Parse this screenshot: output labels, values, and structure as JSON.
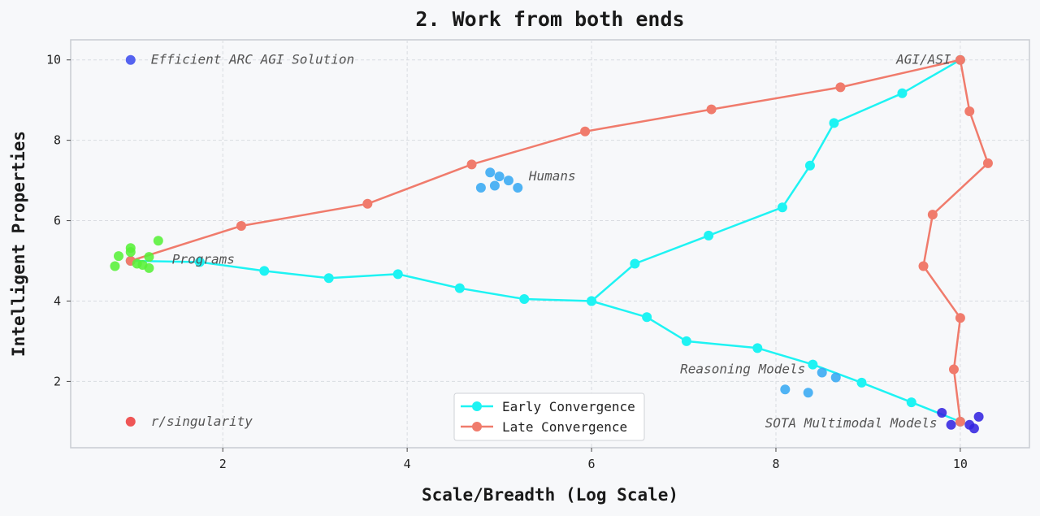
{
  "chart_data": {
    "type": "line",
    "title": "2. Work from both ends",
    "xlabel": "Scale/Breadth (Log Scale)",
    "ylabel": "Intelligent Properties",
    "xlim": [
      0.35,
      10.75
    ],
    "ylim": [
      0.35,
      10.5
    ],
    "xticks": [
      2,
      4,
      6,
      8,
      10
    ],
    "yticks": [
      2,
      4,
      6,
      8,
      10
    ],
    "grid": true,
    "legend_position": "bottom-center",
    "series": [
      {
        "name": "Early Convergence",
        "color": "#1ef3f3",
        "points": [
          [
            1.0,
            5.0
          ],
          [
            1.75,
            4.97
          ],
          [
            2.45,
            4.75
          ],
          [
            3.15,
            4.57
          ],
          [
            3.9,
            4.67
          ],
          [
            4.57,
            4.32
          ],
          [
            5.27,
            4.05
          ],
          [
            6.0,
            4.0
          ],
          [
            6.47,
            4.93
          ],
          [
            7.27,
            5.63
          ],
          [
            8.07,
            6.33
          ],
          [
            8.37,
            7.37
          ],
          [
            8.63,
            8.43
          ],
          [
            9.37,
            9.17
          ],
          [
            10.0,
            10.0
          ]
        ]
      },
      {
        "name": "Early Convergence",
        "color": "#1ef3f3",
        "points": [
          [
            6.0,
            4.0
          ],
          [
            6.6,
            3.6
          ],
          [
            7.03,
            3.0
          ],
          [
            7.8,
            2.83
          ],
          [
            8.4,
            2.42
          ],
          [
            8.93,
            1.97
          ],
          [
            9.47,
            1.48
          ],
          [
            10.0,
            1.0
          ]
        ]
      },
      {
        "name": "Late Convergence",
        "color": "#f07b6c",
        "points": [
          [
            1.0,
            5.0
          ],
          [
            2.2,
            5.87
          ],
          [
            3.57,
            6.42
          ],
          [
            4.7,
            7.4
          ],
          [
            5.93,
            8.22
          ],
          [
            7.3,
            8.77
          ],
          [
            8.7,
            9.32
          ],
          [
            10.0,
            10.0
          ],
          [
            10.1,
            8.72
          ],
          [
            10.3,
            7.43
          ],
          [
            9.7,
            6.15
          ],
          [
            9.6,
            4.87
          ],
          [
            10.0,
            3.58
          ],
          [
            9.93,
            2.3
          ],
          [
            10.0,
            1.0
          ]
        ]
      }
    ],
    "scatter_groups": [
      {
        "color": "#3f4dee",
        "points": [
          [
            1.0,
            10.0
          ]
        ]
      },
      {
        "color": "#ee3f3f",
        "points": [
          [
            1.0,
            1.0
          ]
        ]
      },
      {
        "color": "#58f038",
        "points": [
          [
            0.87,
            5.12
          ],
          [
            1.0,
            5.32
          ],
          [
            1.0,
            5.22
          ],
          [
            1.3,
            5.5
          ],
          [
            1.2,
            5.1
          ],
          [
            1.07,
            4.93
          ],
          [
            1.13,
            4.9
          ],
          [
            0.83,
            4.87
          ],
          [
            1.2,
            4.82
          ]
        ]
      },
      {
        "color": "#38a8f2",
        "points": [
          [
            4.9,
            7.2
          ],
          [
            5.0,
            7.1
          ],
          [
            5.1,
            7.0
          ],
          [
            4.8,
            6.82
          ],
          [
            4.95,
            6.87
          ],
          [
            5.2,
            6.82
          ]
        ]
      },
      {
        "color": "#38a8f2",
        "points": [
          [
            8.1,
            1.8
          ],
          [
            8.35,
            1.72
          ],
          [
            8.5,
            2.22
          ],
          [
            8.65,
            2.1
          ]
        ]
      },
      {
        "color": "#3424e0",
        "points": [
          [
            9.8,
            1.22
          ],
          [
            9.9,
            0.92
          ],
          [
            10.1,
            0.92
          ],
          [
            10.15,
            0.83
          ],
          [
            10.2,
            1.12
          ]
        ]
      }
    ],
    "annotations": [
      {
        "text": "Efficient ARC AGI Solution",
        "x": 1.22,
        "y": 10.0,
        "anchor": "start"
      },
      {
        "text": "AGI/ASI",
        "x": 9.9,
        "y": 10.0,
        "anchor": "end"
      },
      {
        "text": "Humans",
        "x": 5.32,
        "y": 7.1,
        "anchor": "start"
      },
      {
        "text": "Programs",
        "x": 1.45,
        "y": 5.03,
        "anchor": "start"
      },
      {
        "text": "Reasoning Models",
        "x": 8.32,
        "y": 2.3,
        "anchor": "end"
      },
      {
        "text": "SOTA Multimodal Models",
        "x": 9.75,
        "y": 0.96,
        "anchor": "end"
      },
      {
        "text": "r/singularity",
        "x": 1.22,
        "y": 1.0,
        "anchor": "start"
      }
    ],
    "legend": [
      "Early Convergence",
      "Late Convergence"
    ]
  }
}
